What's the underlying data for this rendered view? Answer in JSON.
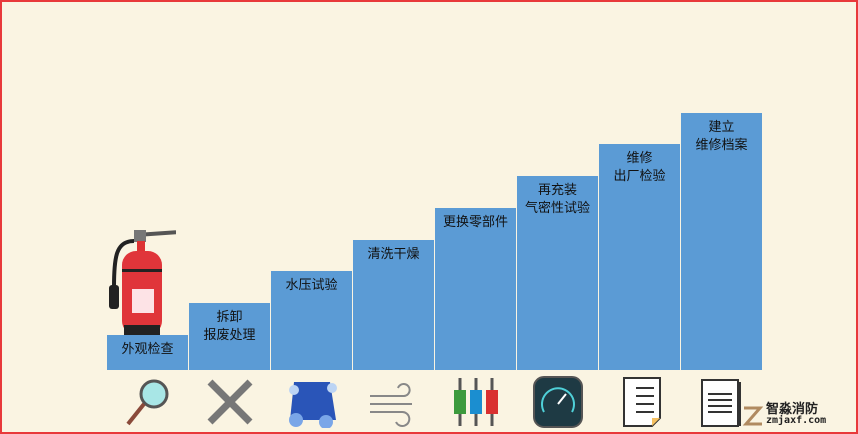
{
  "steps": [
    {
      "lines": [
        "外观检查"
      ]
    },
    {
      "lines": [
        "拆卸",
        "报废处理"
      ]
    },
    {
      "lines": [
        "水压试验"
      ]
    },
    {
      "lines": [
        "清洗干燥"
      ]
    },
    {
      "lines": [
        "更换零部件"
      ]
    },
    {
      "lines": [
        "再充装",
        "气密性试验"
      ]
    },
    {
      "lines": [
        "维修",
        "出厂检验"
      ]
    },
    {
      "lines": [
        "建立",
        "维修档案"
      ]
    }
  ],
  "icons": [
    "magnifier-icon",
    "wrench-icon",
    "water-bubbles-icon",
    "wind-icon",
    "connectors-icon",
    "gauge-icon",
    "checklist-icon",
    "document-icon"
  ],
  "brand": {
    "name": "智淼消防",
    "url": "zmjaxf.com"
  },
  "colors": {
    "bar": "#5b9bd5",
    "background": "#faf4e2",
    "border": "#e8393a"
  }
}
